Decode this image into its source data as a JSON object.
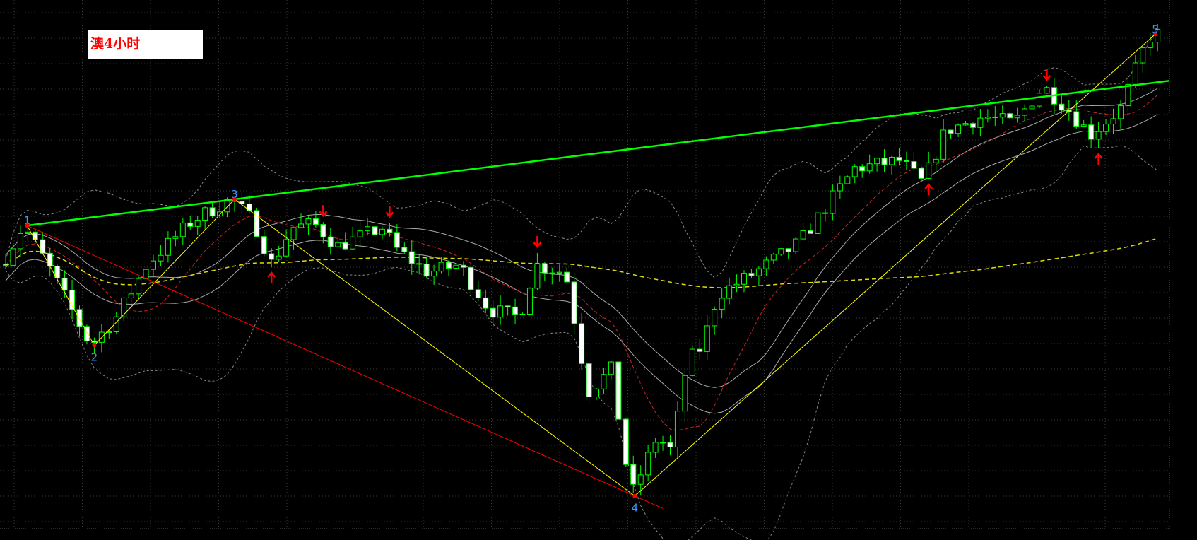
{
  "label": {
    "text": "澳4小时"
  },
  "colors": {
    "background": "#000000",
    "grid": "#3a3a3a",
    "candle": "#00ff00",
    "bear_fill": "#ffffff",
    "trendline": "#00ff00",
    "zigzag": "#ffff00",
    "channel": "#ff0000",
    "ma_fast": "#cc2222",
    "ma_mid": "#aaaaaa",
    "bands": "#888888",
    "ma_slow": "#dddd00",
    "arrow": "#ff0000",
    "pivot_label": "#3399ff"
  },
  "chart_data": {
    "type": "candlestick",
    "ylim": [
      0,
      100
    ],
    "candles": 157,
    "price_path": [
      [
        0.5,
        50.9
      ],
      [
        2.9,
        57.1
      ],
      [
        6.2,
        49.5
      ],
      [
        12,
        33.9
      ],
      [
        15.5,
        39.4
      ],
      [
        19.6,
        49.5
      ],
      [
        25.8,
        58.1
      ],
      [
        31,
        62.2
      ],
      [
        34,
        58.1
      ],
      [
        36.6,
        49.5
      ],
      [
        39.2,
        56.7
      ],
      [
        42.3,
        57.4
      ],
      [
        45.4,
        53.1
      ],
      [
        51.5,
        56.7
      ],
      [
        53.6,
        52.3
      ],
      [
        57.7,
        48
      ],
      [
        61.9,
        49.5
      ],
      [
        66,
        40.8
      ],
      [
        70.1,
        39.4
      ],
      [
        72.2,
        49.5
      ],
      [
        76.3,
        48
      ],
      [
        78.4,
        32.1
      ],
      [
        79.4,
        24.9
      ],
      [
        82.5,
        29.2
      ],
      [
        85.2,
        4.7
      ],
      [
        88.7,
        16.2
      ],
      [
        90.7,
        13.4
      ],
      [
        92.8,
        30.7
      ],
      [
        94.8,
        33.6
      ],
      [
        96.9,
        43.7
      ],
      [
        102,
        48
      ],
      [
        108,
        53.8
      ],
      [
        111,
        59.6
      ],
      [
        115.5,
        68.2
      ],
      [
        121.6,
        69.7
      ],
      [
        124.7,
        65.3
      ],
      [
        127.8,
        75.5
      ],
      [
        133,
        78.3
      ],
      [
        137,
        76.9
      ],
      [
        141,
        84.1
      ],
      [
        144.3,
        79.8
      ],
      [
        147.4,
        74.7
      ],
      [
        151.5,
        79.8
      ],
      [
        154.6,
        91.3
      ],
      [
        155.7,
        94.2
      ]
    ],
    "pivots": [
      {
        "label": "1",
        "t": 2.9,
        "p": 57.1,
        "pos": "top"
      },
      {
        "label": "2",
        "t": 12,
        "p": 33.9,
        "pos": "bottom"
      },
      {
        "label": "3",
        "t": 31,
        "p": 62.2,
        "pos": "top"
      },
      {
        "label": "4",
        "t": 85.2,
        "p": 4.7,
        "pos": "bottom"
      },
      {
        "label": "5",
        "t": 155.7,
        "p": 94.2,
        "pos": "top"
      }
    ],
    "arrows": [
      {
        "t": 36.4,
        "dir": "up"
      },
      {
        "t": 42.6,
        "dir": "down"
      },
      {
        "t": 51.6,
        "dir": "down"
      },
      {
        "t": 71.5,
        "dir": "down"
      },
      {
        "t": 124.8,
        "dir": "up"
      },
      {
        "t": 140.8,
        "dir": "down"
      },
      {
        "t": 147.8,
        "dir": "up"
      }
    ],
    "grid": true
  }
}
